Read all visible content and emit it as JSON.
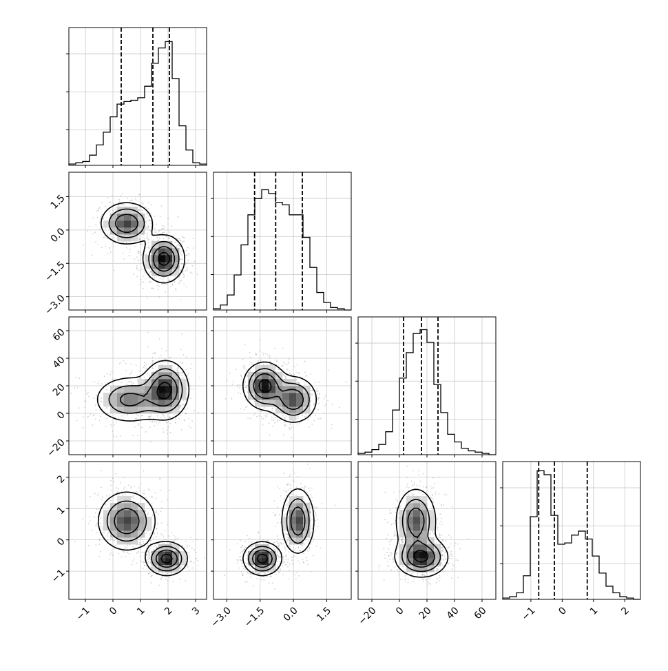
{
  "chart_data": {
    "type": "corner",
    "parameters": [
      {
        "index": 0,
        "range": [
          -1.6,
          3.4
        ],
        "ticks": [
          -1,
          0,
          1,
          2,
          3
        ],
        "tick_labels": [
          "−1",
          "0",
          "1",
          "2",
          "3"
        ],
        "quantiles": [
          0.3,
          1.45,
          2.05
        ]
      },
      {
        "index": 1,
        "range": [
          -3.6,
          2.6
        ],
        "ticks": [
          -3.0,
          -1.5,
          0.0,
          1.5
        ],
        "tick_labels": [
          "−3.0",
          "−1.5",
          "0.0",
          "1.5"
        ],
        "quantiles": [
          -1.75,
          -0.8,
          0.4
        ]
      },
      {
        "index": 2,
        "range": [
          -30,
          70
        ],
        "ticks": [
          -20,
          0,
          20,
          40,
          60
        ],
        "tick_labels": [
          "−20",
          "0",
          "20",
          "40",
          "60"
        ],
        "quantiles": [
          3,
          16,
          28
        ]
      },
      {
        "index": 3,
        "range": [
          -1.9,
          2.5
        ],
        "ticks": [
          -1,
          0,
          1,
          2
        ],
        "tick_labels": [
          "−1",
          "0",
          "1",
          "2"
        ],
        "quantiles": [
          -0.75,
          -0.25,
          0.8
        ]
      }
    ],
    "histograms": [
      {
        "param": 0,
        "bin_edges": [
          -1.6,
          -1.35,
          -1.1,
          -0.85,
          -0.6,
          -0.35,
          -0.1,
          0.15,
          0.4,
          0.65,
          0.9,
          1.15,
          1.4,
          1.65,
          1.9,
          2.15,
          2.4,
          2.65,
          2.9,
          3.15,
          3.4
        ],
        "counts": [
          1,
          2,
          3,
          8,
          16,
          26,
          38,
          48,
          50,
          51,
          53,
          62,
          80,
          92,
          97,
          68,
          31,
          12,
          2,
          1
        ],
        "ymax": 108
      },
      {
        "param": 1,
        "bin_edges": [
          -3.6,
          -3.29,
          -2.98,
          -2.67,
          -2.36,
          -2.05,
          -1.74,
          -1.43,
          -1.12,
          -0.81,
          -0.5,
          -0.19,
          0.12,
          0.43,
          0.74,
          1.05,
          1.36,
          1.67,
          1.98,
          2.29,
          2.6
        ],
        "counts": [
          1,
          4,
          12,
          28,
          52,
          76,
          89,
          96,
          93,
          86,
          84,
          76,
          76,
          58,
          34,
          14,
          6,
          2,
          1,
          0
        ],
        "ymax": 110
      },
      {
        "param": 2,
        "bin_edges": [
          -30,
          -25,
          -20,
          -15,
          -10,
          -5,
          0,
          5,
          10,
          15,
          20,
          25,
          30,
          35,
          40,
          45,
          50,
          55,
          60,
          65,
          70
        ],
        "counts": [
          1,
          2,
          4,
          8,
          18,
          35,
          60,
          80,
          95,
          98,
          88,
          55,
          33,
          16,
          10,
          5,
          3,
          2,
          1,
          0
        ],
        "ymax": 108
      },
      {
        "param": 3,
        "bin_edges": [
          -1.9,
          -1.68,
          -1.46,
          -1.24,
          -1.02,
          -0.8,
          -0.58,
          -0.36,
          -0.14,
          0.08,
          0.3,
          0.52,
          0.74,
          0.96,
          1.18,
          1.4,
          1.62,
          1.84,
          2.06,
          2.28,
          2.5
        ],
        "counts": [
          1,
          2,
          5,
          18,
          63,
          98,
          95,
          64,
          42,
          43,
          49,
          52,
          46,
          33,
          20,
          10,
          5,
          2,
          1,
          0
        ],
        "ymax": 105
      }
    ],
    "pairs": [
      {
        "x_param": 0,
        "y_param": 1,
        "modes": [
          {
            "x": 0.5,
            "y": 0.3,
            "sx": 0.45,
            "sy": 0.45,
            "w": 0.45
          },
          {
            "x": 1.85,
            "y": -1.3,
            "sx": 0.35,
            "sy": 0.5,
            "w": 0.55
          }
        ]
      },
      {
        "x_param": 0,
        "y_param": 2,
        "modes": [
          {
            "x": 0.6,
            "y": 10,
            "sx": 0.6,
            "sy": 8,
            "w": 0.4
          },
          {
            "x": 1.9,
            "y": 17,
            "sx": 0.4,
            "sy": 10,
            "w": 0.6
          }
        ]
      },
      {
        "x_param": 1,
        "y_param": 2,
        "modes": [
          {
            "x": -1.3,
            "y": 20,
            "sx": 0.45,
            "sy": 8,
            "w": 0.55
          },
          {
            "x": 0.0,
            "y": 10,
            "sx": 0.5,
            "sy": 8,
            "w": 0.45
          }
        ]
      },
      {
        "x_param": 0,
        "y_param": 3,
        "modes": [
          {
            "x": 0.5,
            "y": 0.6,
            "sx": 0.5,
            "sy": 0.45,
            "w": 0.45
          },
          {
            "x": 1.95,
            "y": -0.6,
            "sx": 0.35,
            "sy": 0.25,
            "w": 0.55
          }
        ]
      },
      {
        "x_param": 1,
        "y_param": 3,
        "modes": [
          {
            "x": -1.4,
            "y": -0.6,
            "sx": 0.4,
            "sy": 0.25,
            "w": 0.55
          },
          {
            "x": 0.2,
            "y": 0.6,
            "sx": 0.35,
            "sy": 0.5,
            "w": 0.45
          }
        ]
      },
      {
        "x_param": 2,
        "y_param": 3,
        "modes": [
          {
            "x": 16,
            "y": -0.55,
            "sx": 9,
            "sy": 0.3,
            "w": 0.55
          },
          {
            "x": 12,
            "y": 0.6,
            "sx": 7,
            "sy": 0.5,
            "w": 0.45
          }
        ]
      }
    ],
    "contour_levels": [
      0.1,
      0.3,
      0.55,
      0.85
    ],
    "grid": true,
    "quantile_line_style": "dashed"
  }
}
